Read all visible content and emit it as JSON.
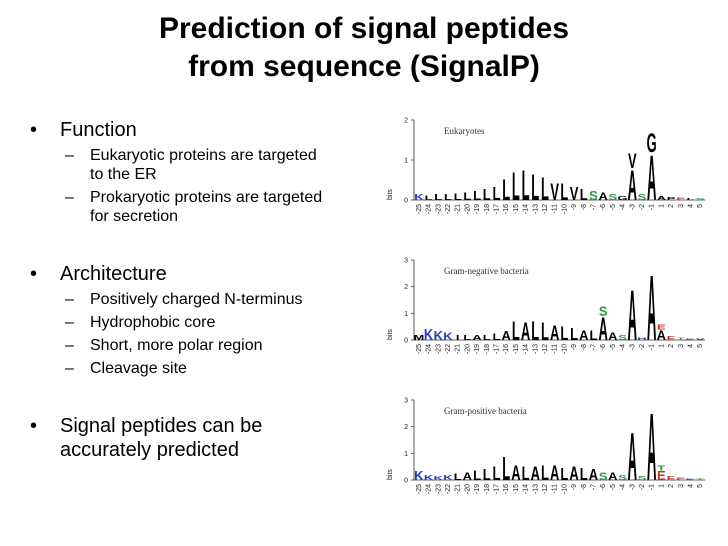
{
  "title": {
    "line1": "Prediction of signal peptides",
    "line2": "from sequence (SignalP)"
  },
  "bullets": {
    "function": {
      "label": "Function",
      "items": [
        "Eukaryotic proteins are targeted to the ER",
        "Prokaryotic proteins are targeted for secretion"
      ]
    },
    "architecture": {
      "label": "Architecture",
      "items": [
        "Positively charged N-terminus",
        "Hydrophobic core",
        "Short, more polar region",
        "Cleavage site"
      ]
    },
    "prediction": {
      "label": "Signal peptides can be accurately predicted"
    }
  },
  "bullet_glyph": "•",
  "dash_glyph": "–",
  "figure": {
    "y_axis_label": "bits",
    "x_ticks": [
      "-25",
      "-24",
      "-23",
      "-22",
      "-21",
      "-20",
      "-19",
      "-18",
      "-17",
      "-16",
      "-15",
      "-14",
      "-13",
      "-12",
      "-11",
      "-10",
      "-9",
      "-8",
      "-7",
      "-6",
      "-5",
      "-4",
      "-3",
      "-2",
      "-1",
      "1",
      "2",
      "3",
      "4",
      "5"
    ],
    "panels": [
      {
        "name": "Eukaryotes",
        "y_ticks": [
          "0",
          "1",
          "2"
        ],
        "ymax": 2,
        "columns": [
          {
            "pos": "-25",
            "letters": [
              [
                "K",
                0.15
              ]
            ]
          },
          {
            "pos": "-24",
            "letters": [
              [
                "L",
                0.12
              ]
            ]
          },
          {
            "pos": "-23",
            "letters": [
              [
                "L",
                0.15
              ]
            ]
          },
          {
            "pos": "-22",
            "letters": [
              [
                "L",
                0.15
              ]
            ]
          },
          {
            "pos": "-21",
            "letters": [
              [
                "L",
                0.18
              ]
            ]
          },
          {
            "pos": "-20",
            "letters": [
              [
                "L",
                0.2
              ]
            ]
          },
          {
            "pos": "-19",
            "letters": [
              [
                "L",
                0.25
              ]
            ]
          },
          {
            "pos": "-18",
            "letters": [
              [
                "L",
                0.3
              ]
            ]
          },
          {
            "pos": "-17",
            "letters": [
              [
                "L",
                0.35
              ]
            ]
          },
          {
            "pos": "-16",
            "letters": [
              [
                "L",
                0.55
              ]
            ]
          },
          {
            "pos": "-15",
            "letters": [
              [
                "L",
                0.75
              ]
            ]
          },
          {
            "pos": "-14",
            "letters": [
              [
                "L",
                0.8
              ]
            ]
          },
          {
            "pos": "-13",
            "letters": [
              [
                "L",
                0.7
              ]
            ]
          },
          {
            "pos": "-12",
            "letters": [
              [
                "L",
                0.6
              ]
            ]
          },
          {
            "pos": "-11",
            "letters": [
              [
                "V",
                0.45
              ]
            ]
          },
          {
            "pos": "-10",
            "letters": [
              [
                "L",
                0.45
              ]
            ]
          },
          {
            "pos": "-9",
            "letters": [
              [
                "V",
                0.35
              ]
            ]
          },
          {
            "pos": "-8",
            "letters": [
              [
                "L",
                0.3
              ]
            ]
          },
          {
            "pos": "-7",
            "letters": [
              [
                "S",
                0.25
              ]
            ]
          },
          {
            "pos": "-6",
            "letters": [
              [
                "A",
                0.2
              ]
            ]
          },
          {
            "pos": "-5",
            "letters": [
              [
                "S",
                0.15
              ]
            ]
          },
          {
            "pos": "-4",
            "letters": [
              [
                "G",
                0.1
              ]
            ]
          },
          {
            "pos": "-3",
            "letters": [
              [
                "A",
                0.8
              ],
              [
                "V",
                0.4
              ]
            ]
          },
          {
            "pos": "-2",
            "letters": [
              [
                "S",
                0.15
              ]
            ]
          },
          {
            "pos": "-1",
            "letters": [
              [
                "A",
                1.2
              ],
              [
                "G",
                0.5
              ]
            ]
          },
          {
            "pos": "1",
            "letters": [
              [
                "A",
                0.1
              ]
            ]
          },
          {
            "pos": "2",
            "letters": [
              [
                "P",
                0.08
              ]
            ]
          },
          {
            "pos": "3",
            "letters": [
              [
                "E",
                0.06
              ]
            ]
          },
          {
            "pos": "4",
            "letters": [
              [
                "L",
                0.05
              ]
            ]
          },
          {
            "pos": "5",
            "letters": [
              [
                "S",
                0.05
              ]
            ]
          }
        ]
      },
      {
        "name": "Gram-negative bacteria",
        "y_ticks": [
          "0",
          "1",
          "2",
          "3"
        ],
        "ymax": 3,
        "columns": [
          {
            "pos": "-25",
            "letters": [
              [
                "M",
                0.2
              ]
            ]
          },
          {
            "pos": "-24",
            "letters": [
              [
                "K",
                0.45
              ]
            ]
          },
          {
            "pos": "-23",
            "letters": [
              [
                "K",
                0.35
              ]
            ]
          },
          {
            "pos": "-22",
            "letters": [
              [
                "K",
                0.3
              ]
            ]
          },
          {
            "pos": "-21",
            "letters": [
              [
                "I",
                0.2
              ]
            ]
          },
          {
            "pos": "-20",
            "letters": [
              [
                "L",
                0.2
              ]
            ]
          },
          {
            "pos": "-19",
            "letters": [
              [
                "A",
                0.2
              ]
            ]
          },
          {
            "pos": "-18",
            "letters": [
              [
                "L",
                0.2
              ]
            ]
          },
          {
            "pos": "-17",
            "letters": [
              [
                "L",
                0.25
              ]
            ]
          },
          {
            "pos": "-16",
            "letters": [
              [
                "A",
                0.35
              ]
            ]
          },
          {
            "pos": "-15",
            "letters": [
              [
                "L",
                0.75
              ]
            ]
          },
          {
            "pos": "-14",
            "letters": [
              [
                "A",
                0.7
              ]
            ]
          },
          {
            "pos": "-13",
            "letters": [
              [
                "L",
                0.75
              ]
            ]
          },
          {
            "pos": "-12",
            "letters": [
              [
                "L",
                0.7
              ]
            ]
          },
          {
            "pos": "-11",
            "letters": [
              [
                "A",
                0.6
              ]
            ]
          },
          {
            "pos": "-10",
            "letters": [
              [
                "L",
                0.55
              ]
            ]
          },
          {
            "pos": "-9",
            "letters": [
              [
                "L",
                0.5
              ]
            ]
          },
          {
            "pos": "-8",
            "letters": [
              [
                "A",
                0.4
              ]
            ]
          },
          {
            "pos": "-7",
            "letters": [
              [
                "L",
                0.4
              ]
            ]
          },
          {
            "pos": "-6",
            "letters": [
              [
                "A",
                0.9
              ],
              [
                "S",
                0.4
              ]
            ]
          },
          {
            "pos": "-5",
            "letters": [
              [
                "A",
                0.3
              ]
            ]
          },
          {
            "pos": "-4",
            "letters": [
              [
                "S",
                0.2
              ]
            ]
          },
          {
            "pos": "-3",
            "letters": [
              [
                "A",
                2.0
              ]
            ]
          },
          {
            "pos": "-2",
            "letters": [
              [
                "H",
                0.1
              ]
            ]
          },
          {
            "pos": "-1",
            "letters": [
              [
                "A",
                2.6
              ]
            ]
          },
          {
            "pos": "1",
            "letters": [
              [
                "A",
                0.4
              ],
              [
                "E",
                0.2
              ]
            ]
          },
          {
            "pos": "2",
            "letters": [
              [
                "E",
                0.15
              ]
            ]
          },
          {
            "pos": "3",
            "letters": [
              [
                "T",
                0.1
              ]
            ]
          },
          {
            "pos": "4",
            "letters": [
              [
                "K",
                0.05
              ]
            ]
          },
          {
            "pos": "5",
            "letters": [
              [
                "V",
                0.05
              ]
            ]
          }
        ]
      },
      {
        "name": "Gram-positive bacteria",
        "y_ticks": [
          "0",
          "1",
          "2",
          "3"
        ],
        "ymax": 3,
        "columns": [
          {
            "pos": "-25",
            "letters": [
              [
                "K",
                0.35
              ]
            ]
          },
          {
            "pos": "-24",
            "letters": [
              [
                "K",
                0.2
              ]
            ]
          },
          {
            "pos": "-23",
            "letters": [
              [
                "K",
                0.15
              ]
            ]
          },
          {
            "pos": "-22",
            "letters": [
              [
                "K",
                0.2
              ]
            ]
          },
          {
            "pos": "-21",
            "letters": [
              [
                "L",
                0.25
              ]
            ]
          },
          {
            "pos": "-20",
            "letters": [
              [
                "A",
                0.3
              ]
            ]
          },
          {
            "pos": "-19",
            "letters": [
              [
                "L",
                0.4
              ]
            ]
          },
          {
            "pos": "-18",
            "letters": [
              [
                "L",
                0.45
              ]
            ]
          },
          {
            "pos": "-17",
            "letters": [
              [
                "L",
                0.55
              ]
            ]
          },
          {
            "pos": "-16",
            "letters": [
              [
                "L",
                0.95
              ]
            ]
          },
          {
            "pos": "-15",
            "letters": [
              [
                "A",
                0.6
              ]
            ]
          },
          {
            "pos": "-14",
            "letters": [
              [
                "L",
                0.55
              ]
            ]
          },
          {
            "pos": "-13",
            "letters": [
              [
                "A",
                0.55
              ]
            ]
          },
          {
            "pos": "-12",
            "letters": [
              [
                "L",
                0.6
              ]
            ]
          },
          {
            "pos": "-11",
            "letters": [
              [
                "A",
                0.6
              ]
            ]
          },
          {
            "pos": "-10",
            "letters": [
              [
                "L",
                0.5
              ]
            ]
          },
          {
            "pos": "-9",
            "letters": [
              [
                "A",
                0.55
              ]
            ]
          },
          {
            "pos": "-8",
            "letters": [
              [
                "L",
                0.5
              ]
            ]
          },
          {
            "pos": "-7",
            "letters": [
              [
                "A",
                0.45
              ]
            ]
          },
          {
            "pos": "-6",
            "letters": [
              [
                "S",
                0.3
              ]
            ]
          },
          {
            "pos": "-5",
            "letters": [
              [
                "A",
                0.3
              ]
            ]
          },
          {
            "pos": "-4",
            "letters": [
              [
                "S",
                0.2
              ]
            ]
          },
          {
            "pos": "-3",
            "letters": [
              [
                "A",
                1.9
              ]
            ]
          },
          {
            "pos": "-2",
            "letters": [
              [
                "S",
                0.15
              ]
            ]
          },
          {
            "pos": "-1",
            "letters": [
              [
                "A",
                2.7
              ]
            ]
          },
          {
            "pos": "1",
            "letters": [
              [
                "E",
                0.35
              ],
              [
                "T",
                0.2
              ]
            ]
          },
          {
            "pos": "2",
            "letters": [
              [
                "E",
                0.15
              ]
            ]
          },
          {
            "pos": "3",
            "letters": [
              [
                "E",
                0.1
              ]
            ]
          },
          {
            "pos": "4",
            "letters": [
              [
                "K",
                0.05
              ]
            ]
          },
          {
            "pos": "5",
            "letters": [
              [
                "T",
                0.05
              ]
            ]
          }
        ]
      }
    ]
  },
  "colors": {
    "hydrophobic": "#000000",
    "polar": "#2e9a3a",
    "basic": "#1f3fbf",
    "acidic": "#c4302b",
    "neutral": "#7a7a7a"
  }
}
